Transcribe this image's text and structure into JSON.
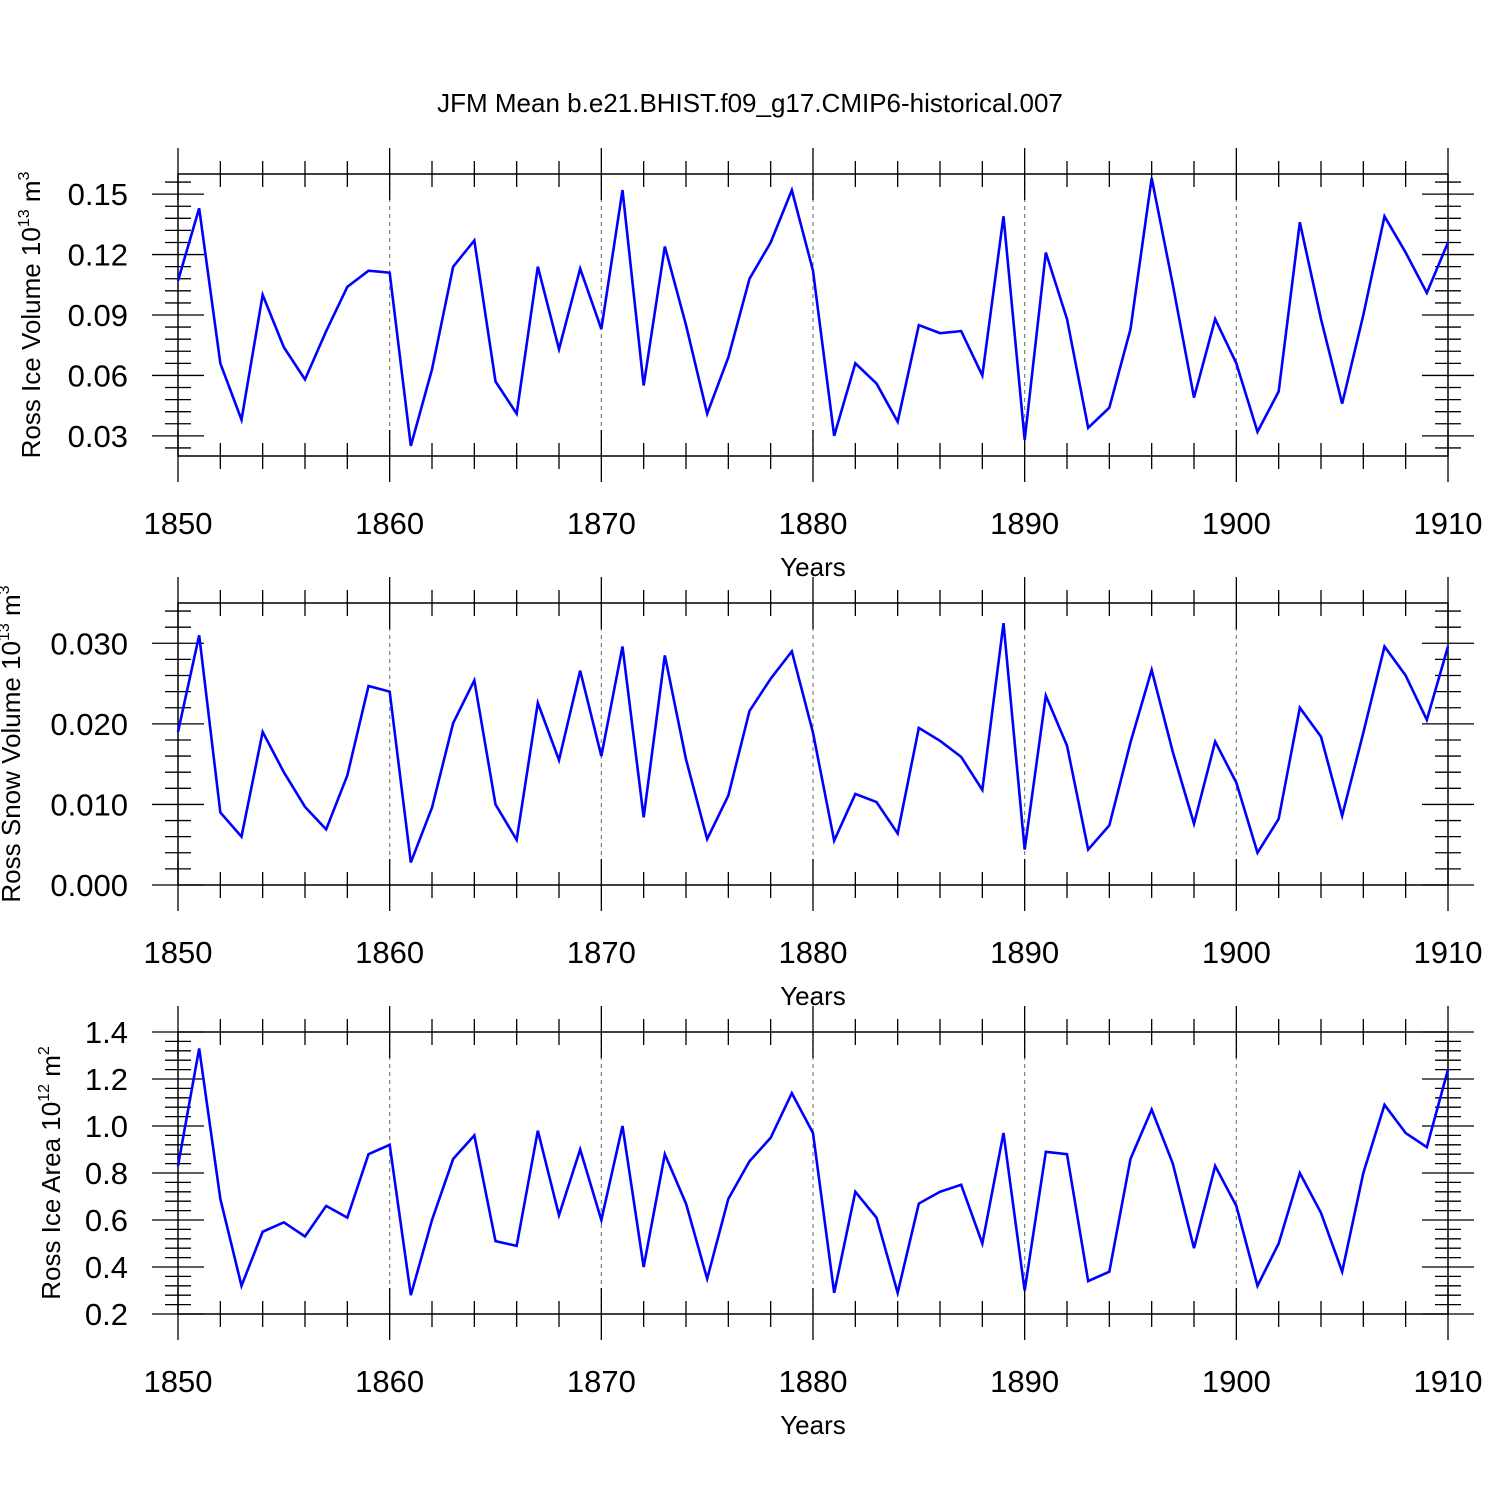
{
  "title": "JFM Mean b.e21.BHIST.f09_g17.CMIP6-historical.007",
  "colors": {
    "series": "#0000ff",
    "axes": "#000000",
    "grid": "#808080",
    "background": "#ffffff"
  },
  "chart_data": [
    {
      "type": "line",
      "ylabel": {
        "text": "Ross Ice Volume 10",
        "exp": "13",
        "unit": " m",
        "unit_exp": "3"
      },
      "xlabel": "Years",
      "xlim": [
        1850,
        1910
      ],
      "ylim": [
        0.02,
        0.16
      ],
      "xticks": [
        1850,
        1860,
        1870,
        1880,
        1890,
        1900,
        1910
      ],
      "xtick_labels": [
        "1850",
        "1860",
        "1870",
        "1880",
        "1890",
        "1900",
        "1910"
      ],
      "yticks": [
        0.03,
        0.06,
        0.09,
        0.12,
        0.15
      ],
      "ytick_labels": [
        "0.03",
        "0.06",
        "0.09",
        "0.12",
        "0.15"
      ],
      "x": [
        1850,
        1851,
        1852,
        1853,
        1854,
        1855,
        1856,
        1857,
        1858,
        1859,
        1860,
        1861,
        1862,
        1863,
        1864,
        1865,
        1866,
        1867,
        1868,
        1869,
        1870,
        1871,
        1872,
        1873,
        1874,
        1875,
        1876,
        1877,
        1878,
        1879,
        1880,
        1881,
        1882,
        1883,
        1884,
        1885,
        1886,
        1887,
        1888,
        1889,
        1890,
        1891,
        1892,
        1893,
        1894,
        1895,
        1896,
        1897,
        1898,
        1899,
        1900,
        1901,
        1902,
        1903,
        1904,
        1905,
        1906,
        1907,
        1908,
        1909,
        1910
      ],
      "values": [
        0.107,
        0.143,
        0.066,
        0.038,
        0.1,
        0.074,
        0.058,
        0.082,
        0.104,
        0.112,
        0.111,
        0.025,
        0.063,
        0.114,
        0.127,
        0.057,
        0.041,
        0.114,
        0.073,
        0.113,
        0.083,
        0.152,
        0.055,
        0.124,
        0.085,
        0.041,
        0.069,
        0.108,
        0.126,
        0.152,
        0.112,
        0.03,
        0.066,
        0.056,
        0.037,
        0.085,
        0.081,
        0.082,
        0.06,
        0.139,
        0.028,
        0.121,
        0.088,
        0.034,
        0.044,
        0.083,
        0.158,
        0.105,
        0.049,
        0.088,
        0.066,
        0.032,
        0.052,
        0.136,
        0.088,
        0.046,
        0.09,
        0.139,
        0.121,
        0.101,
        0.126
      ]
    },
    {
      "type": "line",
      "ylabel": {
        "text": "Ross Snow Volume 10",
        "exp": "13",
        "unit": " m",
        "unit_exp": "3"
      },
      "xlabel": "Years",
      "xlim": [
        1850,
        1910
      ],
      "ylim": [
        0.0,
        0.035
      ],
      "xticks": [
        1850,
        1860,
        1870,
        1880,
        1890,
        1900,
        1910
      ],
      "xtick_labels": [
        "1850",
        "1860",
        "1870",
        "1880",
        "1890",
        "1900",
        "1910"
      ],
      "yticks": [
        0.0,
        0.01,
        0.02,
        0.03
      ],
      "ytick_labels": [
        "0.000",
        "0.010",
        "0.020",
        "0.030"
      ],
      "x": [
        1850,
        1851,
        1852,
        1853,
        1854,
        1855,
        1856,
        1857,
        1858,
        1859,
        1860,
        1861,
        1862,
        1863,
        1864,
        1865,
        1866,
        1867,
        1868,
        1869,
        1870,
        1871,
        1872,
        1873,
        1874,
        1875,
        1876,
        1877,
        1878,
        1879,
        1880,
        1881,
        1882,
        1883,
        1884,
        1885,
        1886,
        1887,
        1888,
        1889,
        1890,
        1891,
        1892,
        1893,
        1894,
        1895,
        1896,
        1897,
        1898,
        1899,
        1900,
        1901,
        1902,
        1903,
        1904,
        1905,
        1906,
        1907,
        1908,
        1909,
        1910
      ],
      "values": [
        0.019,
        0.031,
        0.009,
        0.006,
        0.019,
        0.014,
        0.0097,
        0.0069,
        0.0136,
        0.0247,
        0.024,
        0.0028,
        0.0096,
        0.0201,
        0.0254,
        0.01,
        0.0056,
        0.0226,
        0.0155,
        0.0266,
        0.016,
        0.0296,
        0.0084,
        0.0285,
        0.0156,
        0.0057,
        0.0111,
        0.0216,
        0.0256,
        0.029,
        0.0189,
        0.0055,
        0.0113,
        0.0103,
        0.0064,
        0.0195,
        0.0179,
        0.0159,
        0.0118,
        0.0325,
        0.0044,
        0.0235,
        0.0173,
        0.0044,
        0.0074,
        0.0177,
        0.0267,
        0.0165,
        0.0076,
        0.0178,
        0.0127,
        0.004,
        0.0082,
        0.022,
        0.0184,
        0.0086,
        0.0189,
        0.0296,
        0.026,
        0.0205,
        0.0296
      ]
    },
    {
      "type": "line",
      "ylabel": {
        "text": "Ross Ice Area 10",
        "exp": "12",
        "unit": " m",
        "unit_exp": "2"
      },
      "xlabel": "Years",
      "xlim": [
        1850,
        1910
      ],
      "ylim": [
        0.2,
        1.4
      ],
      "xticks": [
        1850,
        1860,
        1870,
        1880,
        1890,
        1900,
        1910
      ],
      "xtick_labels": [
        "1850",
        "1860",
        "1870",
        "1880",
        "1890",
        "1900",
        "1910"
      ],
      "yticks": [
        0.2,
        0.4,
        0.6,
        0.8,
        1.0,
        1.2,
        1.4
      ],
      "ytick_labels": [
        "0.2",
        "0.4",
        "0.6",
        "0.8",
        "1.0",
        "1.2",
        "1.4"
      ],
      "x": [
        1850,
        1851,
        1852,
        1853,
        1854,
        1855,
        1856,
        1857,
        1858,
        1859,
        1860,
        1861,
        1862,
        1863,
        1864,
        1865,
        1866,
        1867,
        1868,
        1869,
        1870,
        1871,
        1872,
        1873,
        1874,
        1875,
        1876,
        1877,
        1878,
        1879,
        1880,
        1881,
        1882,
        1883,
        1884,
        1885,
        1886,
        1887,
        1888,
        1889,
        1890,
        1891,
        1892,
        1893,
        1894,
        1895,
        1896,
        1897,
        1898,
        1899,
        1900,
        1901,
        1902,
        1903,
        1904,
        1905,
        1906,
        1907,
        1908,
        1909,
        1910
      ],
      "values": [
        0.83,
        1.33,
        0.69,
        0.32,
        0.55,
        0.59,
        0.53,
        0.66,
        0.61,
        0.88,
        0.92,
        0.28,
        0.6,
        0.86,
        0.96,
        0.51,
        0.49,
        0.98,
        0.62,
        0.9,
        0.6,
        1.0,
        0.4,
        0.88,
        0.67,
        0.35,
        0.69,
        0.85,
        0.95,
        1.14,
        0.97,
        0.29,
        0.72,
        0.61,
        0.29,
        0.67,
        0.72,
        0.75,
        0.5,
        0.97,
        0.3,
        0.89,
        0.88,
        0.34,
        0.38,
        0.86,
        1.07,
        0.84,
        0.48,
        0.83,
        0.66,
        0.32,
        0.5,
        0.8,
        0.63,
        0.38,
        0.8,
        1.09,
        0.97,
        0.91,
        1.24
      ]
    }
  ]
}
